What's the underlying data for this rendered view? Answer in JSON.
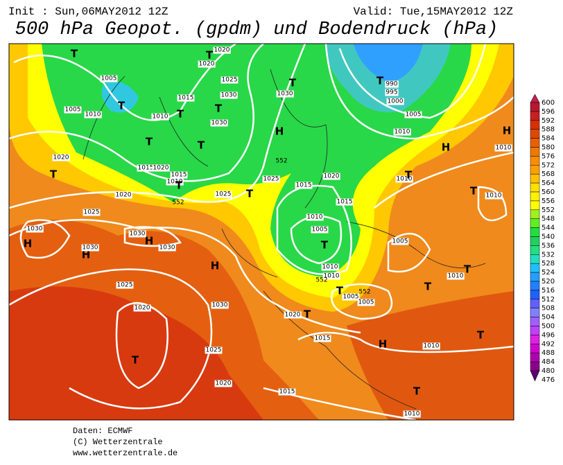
{
  "header": {
    "init": "Init : Sun,06MAY2012 12Z",
    "valid": "Valid: Tue,15MAY2012 12Z",
    "title": "500 hPa Geopot. (gpdm) und Bodendruck (hPa)"
  },
  "colorbar": {
    "levels": [
      600,
      596,
      592,
      588,
      584,
      580,
      576,
      572,
      568,
      564,
      560,
      556,
      552,
      548,
      544,
      540,
      536,
      532,
      528,
      524,
      520,
      516,
      512,
      508,
      504,
      500,
      496,
      492,
      488,
      484,
      480,
      476
    ],
    "colors": [
      "#c0204a",
      "#b81830",
      "#c82020",
      "#d83000",
      "#e04800",
      "#e86000",
      "#f07800",
      "#ff8c00",
      "#ffa000",
      "#ffc000",
      "#ffe000",
      "#fff000",
      "#ffff00",
      "#a0f020",
      "#60f020",
      "#20e040",
      "#20d060",
      "#20e080",
      "#20e0c0",
      "#20c0ff",
      "#20a0ff",
      "#2080ff",
      "#2060ff",
      "#6060ff",
      "#8080ff",
      "#a060ff",
      "#c040ff",
      "#e020e0",
      "#d000d0",
      "#b000b0",
      "#8b008b",
      "#5a0070"
    ]
  },
  "map": {
    "labels": [
      "T",
      "1020",
      "T",
      "1020",
      "1005",
      "1025",
      "1015",
      "1030",
      "T",
      "1010",
      "T",
      "T",
      "1030",
      "1005",
      "1010",
      "T",
      "T",
      "1015",
      "1020",
      "1015",
      "1010",
      "T",
      "1020",
      "T",
      "1020",
      "1025",
      "1025",
      "T",
      "1025",
      "1015",
      "1020",
      "H",
      "1030",
      "T",
      "T",
      "990",
      "995",
      "1000",
      "1005",
      "1010",
      "H",
      "1010",
      "H",
      "1010",
      "T",
      "T",
      "1010",
      "1015",
      "1010",
      "1005",
      "T",
      "1005",
      "H",
      "1030",
      "H",
      "1030",
      "H",
      "1030",
      "1030",
      "H",
      "1030",
      "1025",
      "1020",
      "T",
      "1025",
      "1020",
      "1015",
      "1020",
      "T",
      "1015",
      "1010",
      "1010",
      "T",
      "1005",
      "1005",
      "H",
      "1010",
      "T",
      "T",
      "1010",
      "T",
      "1010",
      "T",
      "552",
      "552",
      "552",
      "552"
    ]
  },
  "footer": {
    "lines": [
      "Daten: ECMWF",
      "(C) Wetterzentrale",
      "www.wetterzentrale.de"
    ]
  }
}
